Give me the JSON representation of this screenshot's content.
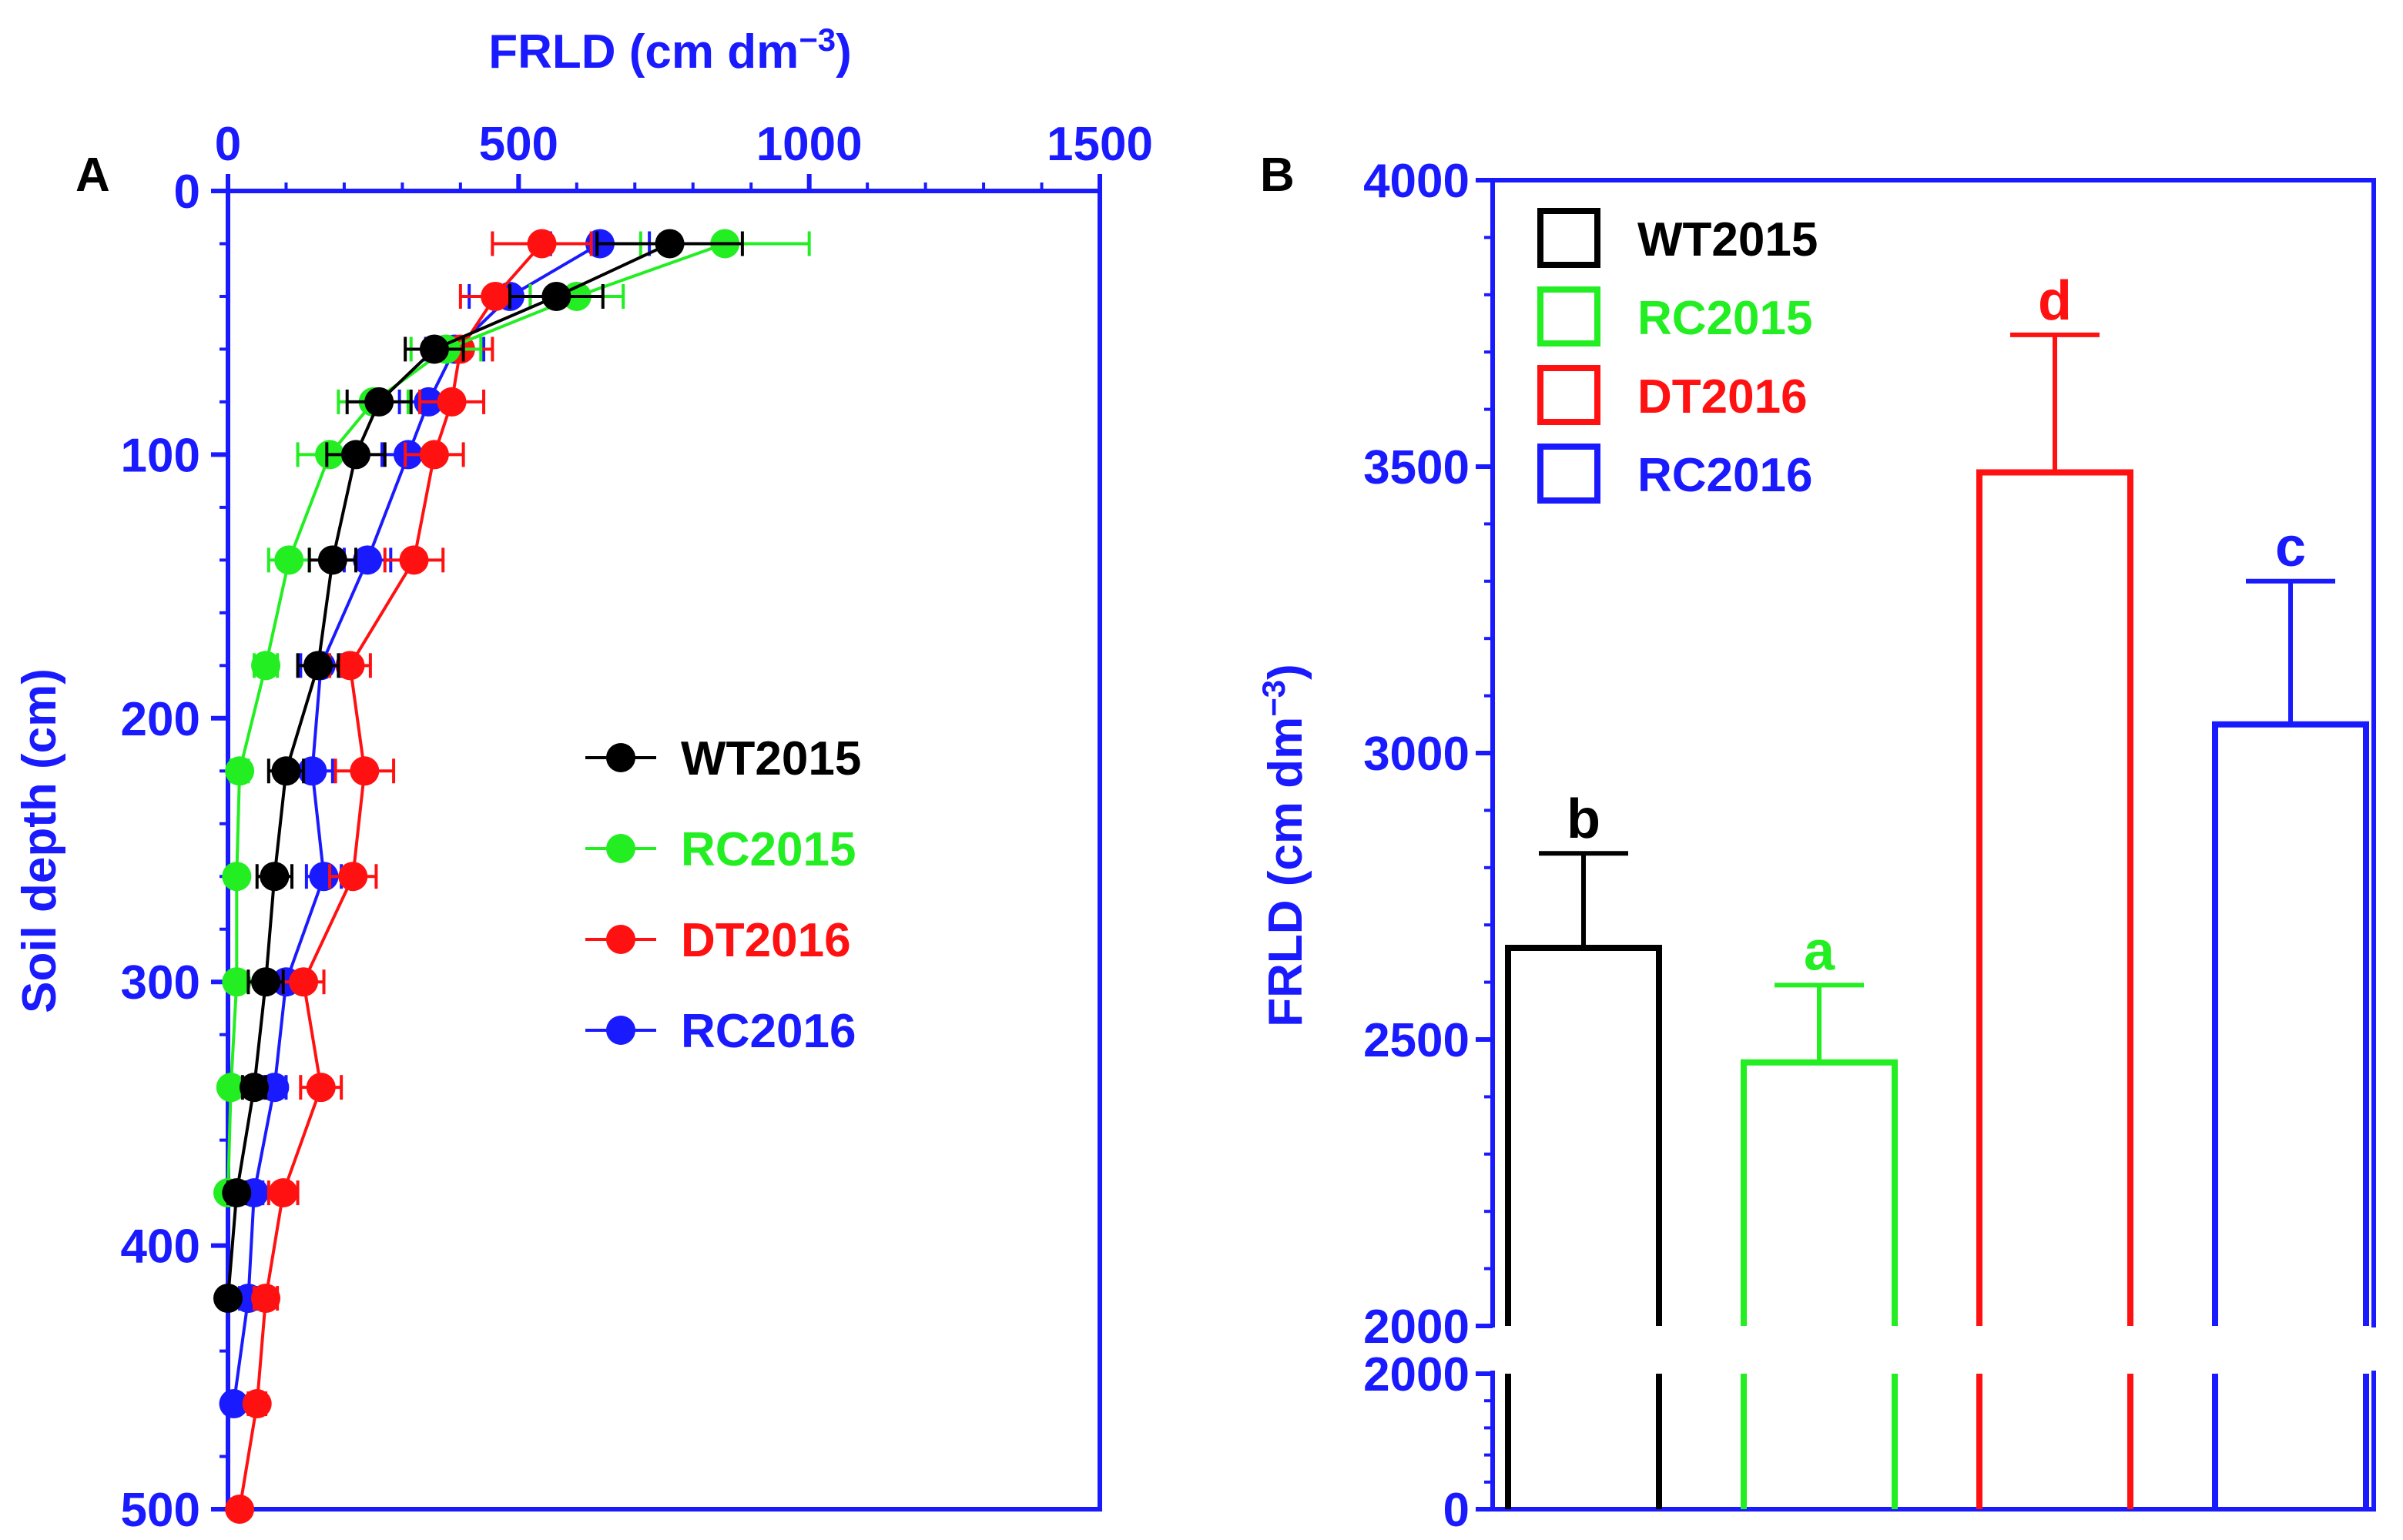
{
  "colors": {
    "axis": "#1a1aff",
    "WT2015": "#000000",
    "RC2015": "#22ee22",
    "DT2016": "#ff1111",
    "RC2016": "#1a1aff"
  },
  "chart_data": [
    {
      "type": "line",
      "panel_label": "A",
      "xlabel": "FRLD (cm dm",
      "xlabel_sup": "−3",
      "xlabel_close": ")",
      "ylabel": "Soil depth (cm)",
      "xlim": [
        0,
        1500
      ],
      "ylim": [
        0,
        500
      ],
      "x_ticks": [
        0,
        500,
        1000,
        1500
      ],
      "y_ticks": [
        0,
        100,
        200,
        300,
        400,
        500
      ],
      "x_axis_position": "top",
      "y_axis_inverted": true,
      "legend_position": "center-right",
      "depth": [
        20,
        40,
        60,
        80,
        100,
        140,
        180,
        220,
        260,
        300,
        340,
        380,
        420,
        460,
        500
      ],
      "series": [
        {
          "name": "WT2015",
          "color": "#000000",
          "x": [
            760,
            565,
            355,
            260,
            220,
            180,
            155,
            100,
            80,
            65,
            45,
            15,
            0,
            null,
            null
          ],
          "err": [
            125,
            80,
            50,
            55,
            50,
            40,
            35,
            30,
            30,
            30,
            20,
            15,
            5,
            null,
            null
          ]
        },
        {
          "name": "RC2015",
          "color": "#22ee22",
          "x": [
            855,
            600,
            375,
            250,
            175,
            105,
            65,
            20,
            15,
            15,
            5,
            0,
            null,
            null,
            null
          ],
          "err": [
            145,
            80,
            60,
            60,
            55,
            35,
            20,
            15,
            10,
            10,
            10,
            5,
            null,
            null,
            null
          ]
        },
        {
          "name": "DT2016",
          "color": "#ff1111",
          "x": [
            540,
            460,
            400,
            385,
            355,
            320,
            210,
            235,
            215,
            130,
            160,
            95,
            65,
            50,
            20
          ],
          "err": [
            85,
            60,
            55,
            55,
            50,
            50,
            35,
            50,
            40,
            35,
            35,
            25,
            20,
            15,
            10
          ]
        },
        {
          "name": "RC2016",
          "color": "#1a1aff",
          "x": [
            640,
            485,
            390,
            345,
            310,
            240,
            160,
            145,
            165,
            100,
            80,
            45,
            35,
            10,
            null
          ],
          "err": [
            85,
            70,
            50,
            50,
            45,
            40,
            35,
            35,
            30,
            30,
            20,
            15,
            15,
            10,
            null
          ]
        }
      ]
    },
    {
      "type": "bar",
      "panel_label": "B",
      "ylabel": "FRLD (cm dm",
      "ylabel_sup": "−3",
      "ylabel_close": ")",
      "ylim": [
        0,
        4000
      ],
      "axis_break": [
        2000,
        2000
      ],
      "y_ticks": [
        "0",
        "2000",
        "2000",
        "2500",
        "3000",
        "3500",
        "4000"
      ],
      "legend_position": "top-left",
      "categories": [
        "WT2015",
        "RC2015",
        "DT2016",
        "RC2016"
      ],
      "values": [
        2660,
        2460,
        3490,
        3050
      ],
      "errors": [
        165,
        135,
        240,
        250
      ],
      "letters": [
        "b",
        "a",
        "d",
        "c"
      ],
      "colors": [
        "#000000",
        "#22ee22",
        "#ff1111",
        "#1a1aff"
      ]
    }
  ]
}
